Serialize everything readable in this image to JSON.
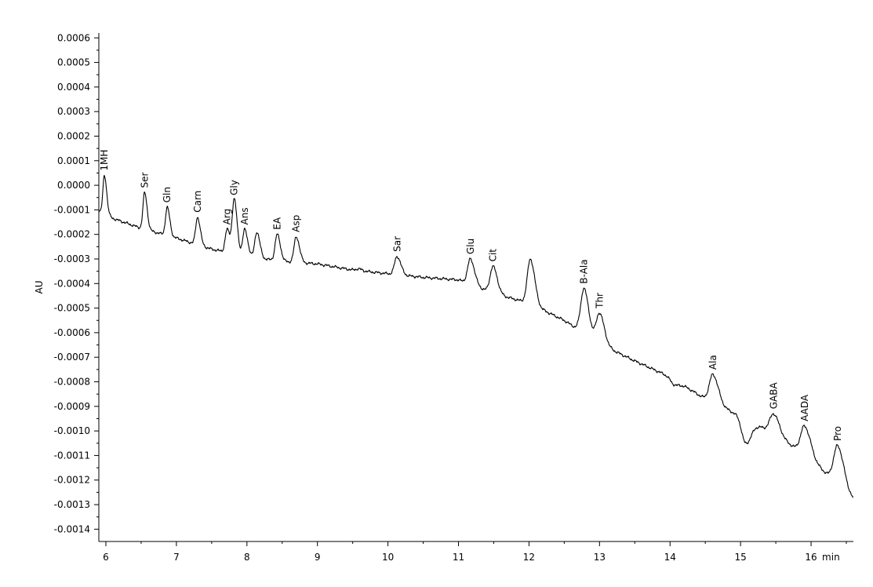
{
  "chart_data": {
    "type": "line",
    "title": "",
    "xlabel": "min",
    "ylabel": "AU",
    "xlim": [
      5.9,
      16.6
    ],
    "ylim": [
      -0.00145,
      0.00062
    ],
    "grid": false,
    "x_ticks": [
      6,
      7,
      8,
      9,
      10,
      11,
      12,
      13,
      14,
      15,
      16
    ],
    "x_tick_labels": [
      "6",
      "7",
      "8",
      "9",
      "10",
      "11",
      "12",
      "13",
      "14",
      "15",
      "16"
    ],
    "y_ticks": [
      0.0006,
      0.0005,
      0.0004,
      0.0003,
      0.0002,
      0.0001,
      0.0,
      -0.0001,
      -0.0002,
      -0.0003,
      -0.0004,
      -0.0005,
      -0.0006,
      -0.0007,
      -0.0008,
      -0.0009,
      -0.001,
      -0.0011,
      -0.0012,
      -0.0013,
      -0.0014
    ],
    "y_tick_labels": [
      "0.0006",
      "0.0005",
      "0.0004",
      "0.0003",
      "0.0002",
      "0.0001",
      "0.0000",
      "-0.0001",
      "-0.0002",
      "-0.0003",
      "-0.0004",
      "-0.0005",
      "-0.0006",
      "-0.0007",
      "-0.0008",
      "-0.0009",
      "-0.0010",
      "-0.0011",
      "-0.0012",
      "-0.0013",
      "-0.0014"
    ],
    "baseline": [
      [
        5.9,
        -0.000105
      ],
      [
        6.1,
        -0.000135
      ],
      [
        6.5,
        -0.000175
      ],
      [
        7.0,
        -0.000215
      ],
      [
        7.5,
        -0.00026
      ],
      [
        8.0,
        -0.00029
      ],
      [
        8.5,
        -0.00031
      ],
      [
        9.0,
        -0.00032
      ],
      [
        9.5,
        -0.000345
      ],
      [
        10.0,
        -0.00036
      ],
      [
        10.5,
        -0.000375
      ],
      [
        11.0,
        -0.000385
      ],
      [
        11.5,
        -0.00044
      ],
      [
        12.0,
        -0.00048
      ],
      [
        12.5,
        -0.00055
      ],
      [
        13.0,
        -0.000645
      ],
      [
        13.5,
        -0.000715
      ],
      [
        14.0,
        -0.00078
      ],
      [
        14.5,
        -0.00087
      ],
      [
        15.0,
        -0.00094
      ],
      [
        15.5,
        -0.001015
      ],
      [
        16.0,
        -0.001115
      ],
      [
        16.6,
        -0.00128
      ]
    ],
    "peaks": [
      {
        "label": "1MH",
        "x": 5.98,
        "y": 4e-05
      },
      {
        "label": "Ser",
        "x": 6.55,
        "y": -3e-05
      },
      {
        "label": "Gln",
        "x": 6.87,
        "y": -9e-05
      },
      {
        "label": "Carn",
        "x": 7.3,
        "y": -0.00013
      },
      {
        "label": "Arg",
        "x": 7.72,
        "y": -0.00018
      },
      {
        "label": "Gly",
        "x": 7.82,
        "y": -6e-05
      },
      {
        "label": "Ans",
        "x": 7.97,
        "y": -0.00018
      },
      {
        "label": "",
        "x": 8.14,
        "y": -0.00019
      },
      {
        "label": "EA",
        "x": 8.43,
        "y": -0.0002
      },
      {
        "label": "Asp",
        "x": 8.7,
        "y": -0.00021
      },
      {
        "label": "",
        "x": 9.58,
        "y": -0.00034
      },
      {
        "label": "Sar",
        "x": 10.13,
        "y": -0.00029
      },
      {
        "label": "Glu",
        "x": 11.17,
        "y": -0.0003
      },
      {
        "label": "Cit",
        "x": 11.49,
        "y": -0.00033
      },
      {
        "label": "",
        "x": 12.02,
        "y": -0.0003
      },
      {
        "label": "B-Ala",
        "x": 12.78,
        "y": -0.00042
      },
      {
        "label": "Thr",
        "x": 13.0,
        "y": -0.00052
      },
      {
        "label": "",
        "x": 14.05,
        "y": -0.00081
      },
      {
        "label": "Ala",
        "x": 14.61,
        "y": -0.00077
      },
      {
        "label": "",
        "x": 15.07,
        "y": -0.00105
      },
      {
        "label": "GABA",
        "x": 15.47,
        "y": -0.00093
      },
      {
        "label": "AADA",
        "x": 15.91,
        "y": -0.00098
      },
      {
        "label": "Pro",
        "x": 16.38,
        "y": -0.00106
      }
    ]
  }
}
